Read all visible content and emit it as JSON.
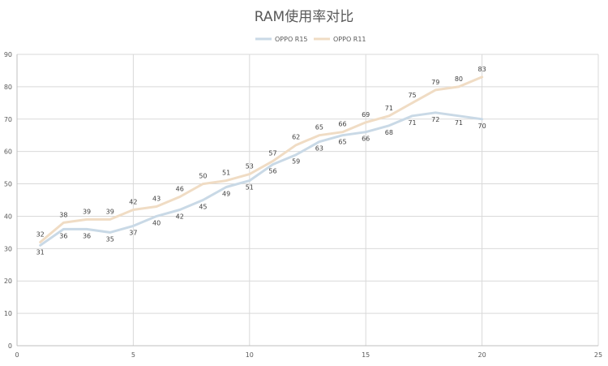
{
  "chart_data": {
    "type": "line",
    "title": "RAM使用率对比",
    "xlabel": "",
    "ylabel": "",
    "xlim": [
      0,
      25
    ],
    "ylim": [
      0,
      90
    ],
    "x_ticks": [
      0,
      5,
      10,
      15,
      20,
      25
    ],
    "y_ticks": [
      0,
      10,
      20,
      30,
      40,
      50,
      60,
      70,
      80,
      90
    ],
    "grid": true,
    "legend_position": "top",
    "x": [
      1,
      2,
      3,
      4,
      5,
      6,
      7,
      8,
      9,
      10,
      11,
      12,
      13,
      14,
      15,
      16,
      17,
      18,
      19,
      20
    ],
    "series": [
      {
        "name": "OPPO R15",
        "color": "#c9d9e6",
        "values": [
          31,
          36,
          36,
          35,
          37,
          40,
          42,
          45,
          49,
          51,
          56,
          59,
          63,
          65,
          66,
          68,
          71,
          72,
          71,
          70
        ]
      },
      {
        "name": "OPPO R11",
        "color": "#f0dcc4",
        "values": [
          32,
          38,
          39,
          39,
          42,
          43,
          46,
          50,
          51,
          53,
          57,
          62,
          65,
          66,
          69,
          71,
          75,
          79,
          80,
          83
        ]
      }
    ]
  }
}
